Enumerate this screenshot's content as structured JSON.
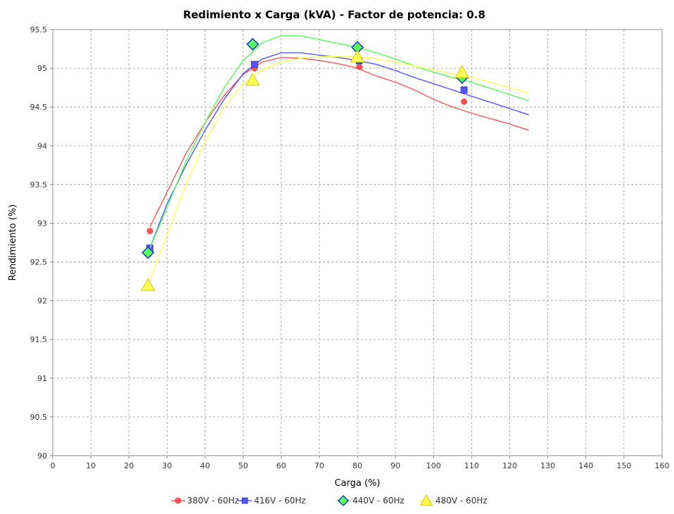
{
  "chart_data": {
    "type": "line",
    "title": "Redimiento x Carga (kVA) - Factor de potencia: 0.8",
    "xlabel": "Carga (%)",
    "ylabel": "Rendimiento (%)",
    "xlim": [
      0,
      160
    ],
    "ylim": [
      90,
      95.5
    ],
    "xticks": [
      0,
      10,
      20,
      30,
      40,
      50,
      60,
      70,
      80,
      90,
      100,
      110,
      120,
      130,
      140,
      150,
      160
    ],
    "xtick_labels": [
      "0",
      "10",
      "20",
      "30",
      "40",
      "50",
      "60",
      "70",
      "80",
      "90",
      "100",
      "110",
      "120",
      "130",
      "140",
      "150",
      "160"
    ],
    "yticks": [
      90,
      90.5,
      91,
      91.5,
      92,
      92.5,
      93,
      93.5,
      94,
      94.5,
      95,
      95.5
    ],
    "ytick_labels": [
      "90",
      "90.5",
      "91",
      "91.5",
      "92",
      "92.5",
      "93",
      "93.5",
      "94",
      "94.5",
      "95",
      "95.5"
    ],
    "grid": true,
    "legend_position": "bottom",
    "series": [
      {
        "name": "380V - 60Hz",
        "color": "#ff5555",
        "marker": "circle",
        "points": [
          [
            25.5,
            92.9
          ],
          [
            53.0,
            95.0
          ],
          [
            80.5,
            95.02
          ],
          [
            108.0,
            94.57
          ]
        ],
        "curve": [
          [
            25.5,
            92.95
          ],
          [
            30,
            93.4
          ],
          [
            35,
            93.9
          ],
          [
            40,
            94.3
          ],
          [
            45,
            94.65
          ],
          [
            50,
            94.92
          ],
          [
            55,
            95.08
          ],
          [
            60,
            95.14
          ],
          [
            65,
            95.13
          ],
          [
            70,
            95.1
          ],
          [
            75,
            95.06
          ],
          [
            80,
            95.0
          ],
          [
            85,
            94.9
          ],
          [
            90,
            94.82
          ],
          [
            95,
            94.72
          ],
          [
            100,
            94.6
          ],
          [
            105,
            94.5
          ],
          [
            110,
            94.42
          ],
          [
            115,
            94.35
          ],
          [
            120,
            94.28
          ],
          [
            125,
            94.2
          ]
        ]
      },
      {
        "name": "416V - 60Hz",
        "color": "#5555ff",
        "marker": "square",
        "points": [
          [
            25.5,
            92.68
          ],
          [
            53.0,
            95.05
          ],
          [
            80.5,
            95.1
          ],
          [
            108.0,
            94.72
          ]
        ],
        "curve": [
          [
            25.5,
            92.68
          ],
          [
            30,
            93.25
          ],
          [
            35,
            93.75
          ],
          [
            40,
            94.2
          ],
          [
            45,
            94.6
          ],
          [
            50,
            94.93
          ],
          [
            55,
            95.12
          ],
          [
            60,
            95.2
          ],
          [
            65,
            95.2
          ],
          [
            70,
            95.17
          ],
          [
            75,
            95.14
          ],
          [
            80,
            95.1
          ],
          [
            85,
            95.05
          ],
          [
            90,
            94.97
          ],
          [
            95,
            94.88
          ],
          [
            100,
            94.8
          ],
          [
            105,
            94.72
          ],
          [
            110,
            94.64
          ],
          [
            115,
            94.56
          ],
          [
            120,
            94.48
          ],
          [
            125,
            94.4
          ]
        ]
      },
      {
        "name": "440V - 60Hz",
        "color": "#55ff55",
        "marker": "diamond",
        "points": [
          [
            25.0,
            92.62
          ],
          [
            52.5,
            95.31
          ],
          [
            80.0,
            95.27
          ],
          [
            107.5,
            94.88
          ]
        ],
        "curve": [
          [
            25.0,
            92.62
          ],
          [
            30,
            93.2
          ],
          [
            35,
            93.8
          ],
          [
            40,
            94.3
          ],
          [
            45,
            94.75
          ],
          [
            50,
            95.1
          ],
          [
            55,
            95.33
          ],
          [
            60,
            95.42
          ],
          [
            65,
            95.42
          ],
          [
            70,
            95.37
          ],
          [
            75,
            95.32
          ],
          [
            80,
            95.27
          ],
          [
            85,
            95.2
          ],
          [
            90,
            95.12
          ],
          [
            95,
            95.03
          ],
          [
            100,
            94.95
          ],
          [
            105,
            94.88
          ],
          [
            110,
            94.82
          ],
          [
            115,
            94.74
          ],
          [
            120,
            94.66
          ],
          [
            125,
            94.58
          ]
        ]
      },
      {
        "name": "480V - 60Hz",
        "color": "#ffff55",
        "marker": "triangle",
        "points": [
          [
            25.0,
            92.2
          ],
          [
            52.5,
            94.85
          ],
          [
            80.0,
            95.15
          ],
          [
            107.5,
            94.95
          ]
        ],
        "curve": [
          [
            25.0,
            92.2
          ],
          [
            30,
            92.85
          ],
          [
            35,
            93.5
          ],
          [
            40,
            94.05
          ],
          [
            45,
            94.5
          ],
          [
            50,
            94.8
          ],
          [
            55,
            94.98
          ],
          [
            60,
            95.08
          ],
          [
            65,
            95.13
          ],
          [
            70,
            95.15
          ],
          [
            75,
            95.15
          ],
          [
            80,
            95.15
          ],
          [
            85,
            95.12
          ],
          [
            90,
            95.08
          ],
          [
            95,
            95.03
          ],
          [
            100,
            94.98
          ],
          [
            105,
            94.93
          ],
          [
            110,
            94.88
          ],
          [
            115,
            94.82
          ],
          [
            120,
            94.75
          ],
          [
            125,
            94.68
          ]
        ]
      }
    ]
  }
}
